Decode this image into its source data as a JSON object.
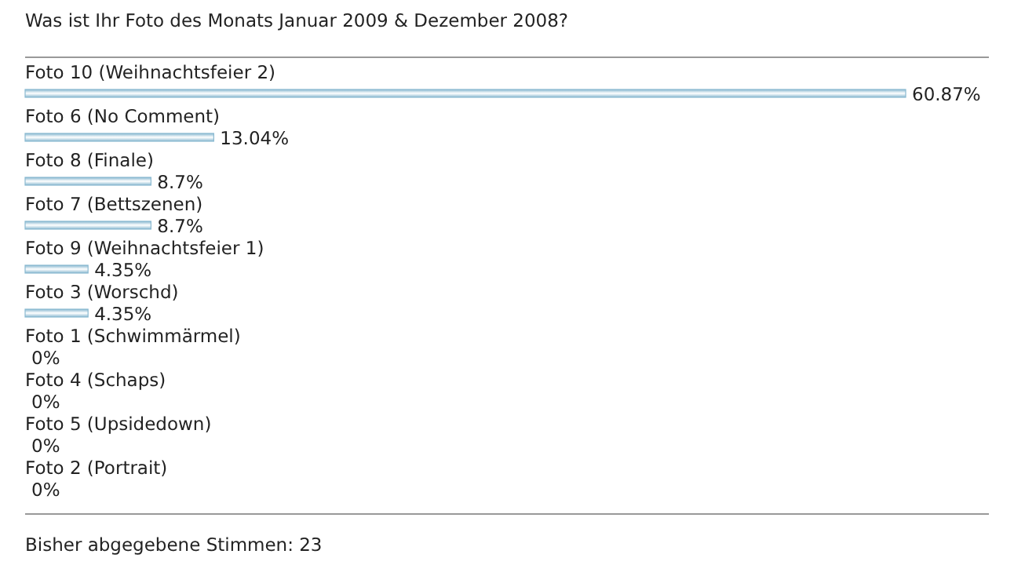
{
  "chart_data": {
    "type": "bar",
    "orientation": "horizontal",
    "title": "Was ist Ihr Foto des Monats Januar 2009 & Dezember 2008?",
    "categories": [
      "Foto 10 (Weihnachtsfeier 2)",
      "Foto 6 (No Comment)",
      "Foto 8 (Finale)",
      "Foto 7 (Bettszenen)",
      "Foto 9 (Weihnachtsfeier 1)",
      "Foto 3 (Worschd)",
      "Foto 1 (Schwimmärmel)",
      "Foto 4 (Schaps)",
      "Foto 5 (Upsidedown)",
      "Foto 2 (Portrait)"
    ],
    "values": [
      60.87,
      13.04,
      8.7,
      8.7,
      4.35,
      4.35,
      0,
      0,
      0,
      0
    ],
    "value_labels": [
      "60.87%",
      "13.04%",
      "8.7%",
      "8.7%",
      "4.35%",
      "4.35%",
      "0%",
      "0%",
      "0%",
      "0%"
    ],
    "color": "#8ab9d1",
    "annotations": [
      "Bisher abgegebene Stimmen: 23"
    ]
  }
}
